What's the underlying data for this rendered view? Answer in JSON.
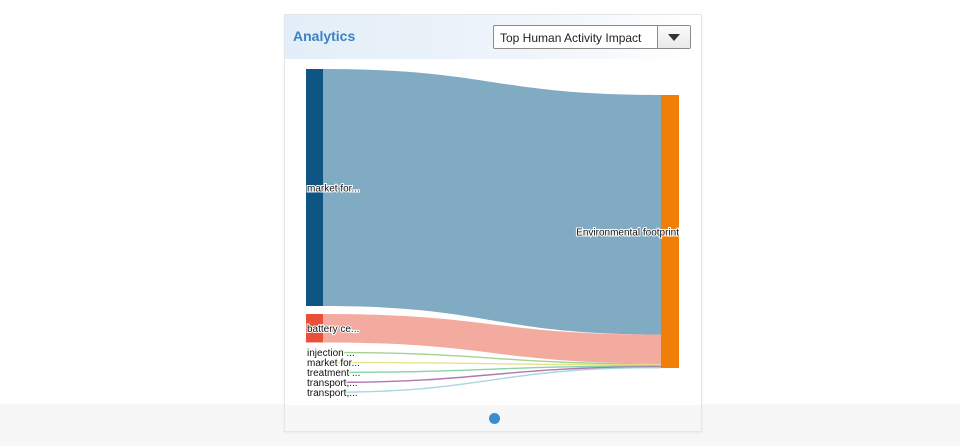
{
  "panel": {
    "title": "Analytics",
    "dropdown": {
      "selected": "Top Human Activity Impact"
    }
  },
  "chart_data": {
    "type": "sankey",
    "target": {
      "label": "Environmental footprint",
      "color": "#f07f09"
    },
    "sources": [
      {
        "label": "market for...",
        "value": 100,
        "node_color": "#0f5584",
        "link_color": "#7ea9c2"
      },
      {
        "label": "battery ce...",
        "value": 12,
        "node_color": "#e8503a",
        "link_color": "#f3a89d"
      },
      {
        "label": "injection ...",
        "value": 0.5,
        "node_color": "#9ccc88",
        "link_color": "#9ccc88"
      },
      {
        "label": "market for...",
        "value": 0.4,
        "node_color": "#e2df80",
        "link_color": "#e2df80"
      },
      {
        "label": "treatment ...",
        "value": 0.4,
        "node_color": "#7ccfa0",
        "link_color": "#7ccfa0"
      },
      {
        "label": "transport,...",
        "value": 0.35,
        "node_color": "#a86aa4",
        "link_color": "#a86aa4"
      },
      {
        "label": "transport,...",
        "value": 0.3,
        "node_color": "#9fd3dc",
        "link_color": "#9fd3dc"
      }
    ]
  }
}
